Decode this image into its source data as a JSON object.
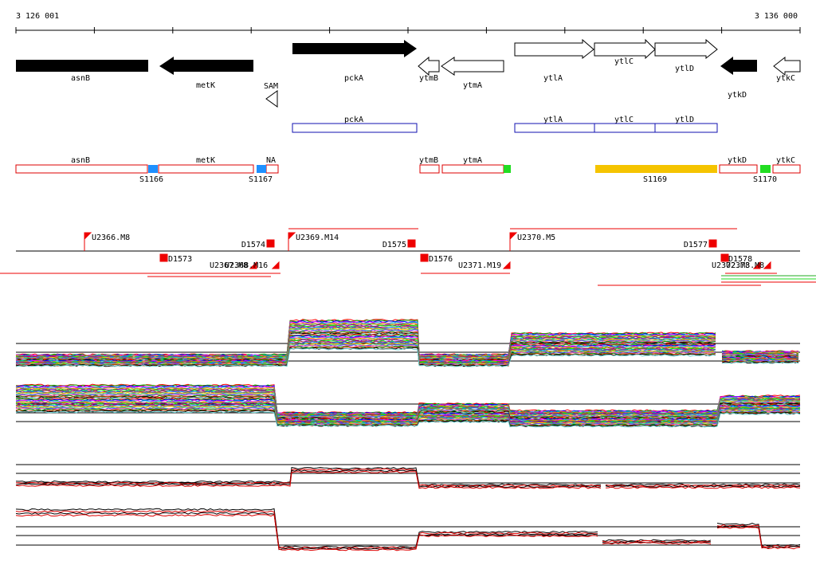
{
  "ruler": {
    "start_label": "3 126 001",
    "end_label": "3 136 000"
  },
  "genes": [
    {
      "name": "asnB",
      "strand": "+",
      "style": "filled"
    },
    {
      "name": "metK",
      "strand": "-",
      "style": "filled"
    },
    {
      "name": "SAM",
      "strand": "-",
      "style": "outline"
    },
    {
      "name": "pckA",
      "strand": "+",
      "style": "filled"
    },
    {
      "name": "ytmB",
      "strand": "-",
      "style": "outline"
    },
    {
      "name": "ytmA",
      "strand": "-",
      "style": "outline"
    },
    {
      "name": "ytlA",
      "strand": "+",
      "style": "outline"
    },
    {
      "name": "ytlC",
      "strand": "+",
      "style": "outline"
    },
    {
      "name": "ytlD",
      "strand": "+",
      "style": "outline"
    },
    {
      "name": "ytkD",
      "strand": "-",
      "style": "filled"
    },
    {
      "name": "ytkC",
      "strand": "-",
      "style": "outline"
    }
  ],
  "blue_boxes": [
    "pckA",
    "ytlA",
    "ytlC",
    "ytlD"
  ],
  "red_boxes": [
    "asnB",
    "metK",
    "NA",
    "ytmB",
    "ytmA",
    "ytkD",
    "ytkC"
  ],
  "segments": [
    {
      "label": "S1166",
      "color": "#1e90ff"
    },
    {
      "label": "S1167",
      "color": "#1e90ff"
    },
    {
      "label": "S1169",
      "color": "#f5c400"
    },
    {
      "label": "S1170",
      "color": "#22dd22"
    }
  ],
  "small_marks": [
    {
      "color": "#22dd22"
    }
  ],
  "features_top": [
    "U2366.M8",
    "D1574",
    "U2369.M14",
    "D1575",
    "U2370.M5",
    "D1577"
  ],
  "features_bottom": [
    "D1573",
    "U2367.M8",
    "U2368.M16",
    "D1576",
    "U2371.M19",
    "D1578",
    "U2372.M8",
    "U2373.M8"
  ],
  "colors": {
    "gene_fill": "#000000",
    "blue_outline": "#1010b0",
    "red_outline": "#dd0000",
    "marker": "#ee0000"
  }
}
